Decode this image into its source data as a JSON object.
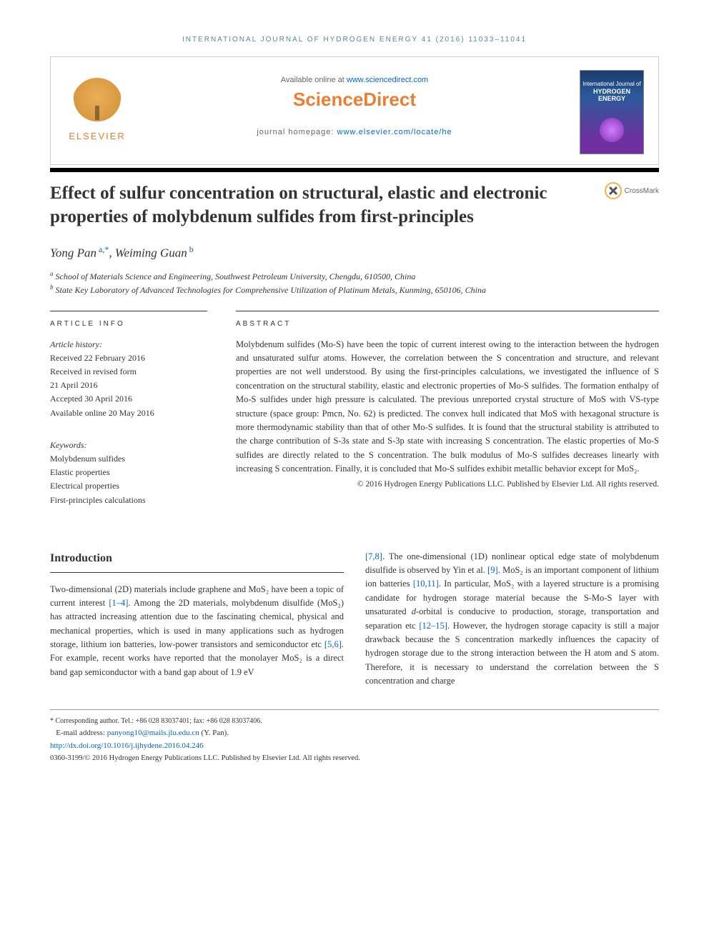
{
  "journal_ref": "INTERNATIONAL JOURNAL OF HYDROGEN ENERGY 41 (2016) 11033–11041",
  "header": {
    "elsevier": "ELSEVIER",
    "available": "Available online at ",
    "available_link": "www.sciencedirect.com",
    "sd_logo": "ScienceDirect",
    "homepage_label": "journal homepage: ",
    "homepage_link": "www.elsevier.com/locate/he",
    "cover_line1": "International Journal of",
    "cover_line2": "HYDROGEN",
    "cover_line3": "ENERGY"
  },
  "crossmark": "CrossMark",
  "title": "Effect of sulfur concentration on structural, elastic and electronic properties of molybdenum sulfides from first-principles",
  "authors": {
    "a1_name": "Yong Pan",
    "a1_sup": " a,*",
    "sep": ", ",
    "a2_name": "Weiming Guan",
    "a2_sup": " b"
  },
  "affiliations": {
    "a_label": "a",
    "a_text": " School of Materials Science and Engineering, Southwest Petroleum University, Chengdu, 610500, China",
    "b_label": "b",
    "b_text": " State Key Laboratory of Advanced Technologies for Comprehensive Utilization of Platinum Metals, Kunming, 650106, China"
  },
  "info": {
    "heading": "ARTICLE INFO",
    "history_label": "Article history:",
    "h1": "Received 22 February 2016",
    "h2": "Received in revised form",
    "h3": "21 April 2016",
    "h4": "Accepted 30 April 2016",
    "h5": "Available online 20 May 2016",
    "keywords_label": "Keywords:",
    "k1": "Molybdenum sulfides",
    "k2": "Elastic properties",
    "k3": "Electrical properties",
    "k4": "First-principles calculations"
  },
  "abstract": {
    "heading": "ABSTRACT",
    "text": "Molybdenum sulfides (Mo-S) have been the topic of current interest owing to the interaction between the hydrogen and unsaturated sulfur atoms. However, the correlation between the S concentration and structure, and relevant properties are not well understood. By using the first-principles calculations, we investigated the influence of S concentration on the structural stability, elastic and electronic properties of Mo-S sulfides. The formation enthalpy of Mo-S sulfides under high pressure is calculated. The previous unreported crystal structure of MoS with VS-type structure (space group: Pmcn, No. 62) is predicted. The convex hull indicated that MoS with hexagonal structure is more thermodynamic stability than that of other Mo-S sulfides. It is found that the structural stability is attributed to the charge contribution of S-3s state and S-3p state with increasing S concentration. The elastic properties of Mo-S sulfides are directly related to the S concentration. The bulk modulus of Mo-S sulfides decreases linearly with increasing S concentration. Finally, it is concluded that Mo-S sulfides exhibit metallic behavior except for MoS₂.",
    "copyright": "© 2016 Hydrogen Energy Publications LLC. Published by Elsevier Ltd. All rights reserved."
  },
  "intro": {
    "heading": "Introduction",
    "col1_p1a": "Two-dimensional (2D) materials include graphene and MoS₂ have been a topic of current interest ",
    "ref1": "[1–4]",
    "col1_p1b": ". Among the 2D materials, molybdenum disulfide (MoS₂) has attracted increasing attention due to the fascinating chemical, physical and mechanical properties, which is used in many applications such as hydrogen storage, lithium ion batteries, low-power transistors and semiconductor etc ",
    "ref2": "[5,6]",
    "col1_p1c": ". For example, recent works have reported that the monolayer MoS₂ is a direct band gap semiconductor with a band gap about of 1.9 eV",
    "col2_ref3": "[7,8]",
    "col2_a": ". The one-dimensional (1D) nonlinear optical edge state of molybdenum disulfide is observed by Yin et al. ",
    "col2_ref4": "[9]",
    "col2_b": ". MoS₂ is an important component of lithium ion batteries ",
    "col2_ref5": "[10,11]",
    "col2_c": ". In particular, MoS₂ with a layered structure is a promising candidate for hydrogen storage material because the S-Mo-S layer with unsaturated ",
    "col2_ital": "d",
    "col2_d": "-orbital is conducive to production, storage, transportation and separation etc ",
    "col2_ref6": "[12–15]",
    "col2_e": ". However, the hydrogen storage capacity is still a major drawback because the S concentration markedly influences the capacity of hydrogen storage due to the strong interaction between the H atom and S atom. Therefore, it is necessary to understand the correlation between the S concentration and charge"
  },
  "footer": {
    "corr": "* Corresponding author. Tel.: +86 028 83037401; fax: +86 028 83037406.",
    "email_label": "E-mail address: ",
    "email": "panyong10@mails.jlu.edu.cn",
    "email_suffix": " (Y. Pan).",
    "doi": "http://dx.doi.org/10.1016/j.ijhydene.2016.04.246",
    "copyright": "0360-3199/© 2016 Hydrogen Energy Publications LLC. Published by Elsevier Ltd. All rights reserved."
  },
  "colors": {
    "link": "#0066cc",
    "elsevier_orange": "#ed7d31",
    "journal_teal": "#56879d",
    "text": "#333333"
  }
}
